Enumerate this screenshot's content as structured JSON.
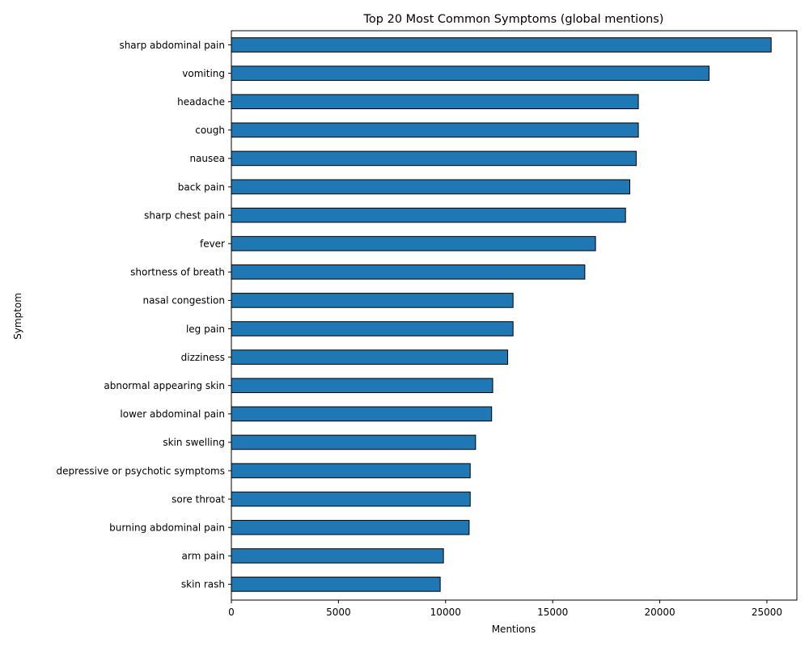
{
  "chart_data": {
    "type": "bar",
    "orientation": "horizontal",
    "title": "Top 20 Most Common Symptoms (global mentions)",
    "xlabel": "Mentions",
    "ylabel": "Symptom",
    "xlim": [
      0,
      26400
    ],
    "xticks": [
      0,
      5000,
      10000,
      15000,
      20000,
      25000
    ],
    "bar_color": "#1f77b4",
    "edge_color": "#000000",
    "grid": false,
    "categories": [
      "sharp abdominal pain",
      "vomiting",
      "headache",
      "cough",
      "nausea",
      "back pain",
      "sharp chest pain",
      "fever",
      "shortness of breath",
      "nasal congestion",
      "leg pain",
      "dizziness",
      "abnormal appearing skin",
      "lower abdominal pain",
      "skin swelling",
      "depressive or psychotic symptoms",
      "sore throat",
      "burning abdominal pain",
      "arm pain",
      "skin rash"
    ],
    "values": [
      25200,
      22300,
      19000,
      19000,
      18900,
      18600,
      18400,
      17000,
      16500,
      13150,
      13150,
      12900,
      12200,
      12150,
      11400,
      11150,
      11150,
      11100,
      9900,
      9750
    ]
  }
}
